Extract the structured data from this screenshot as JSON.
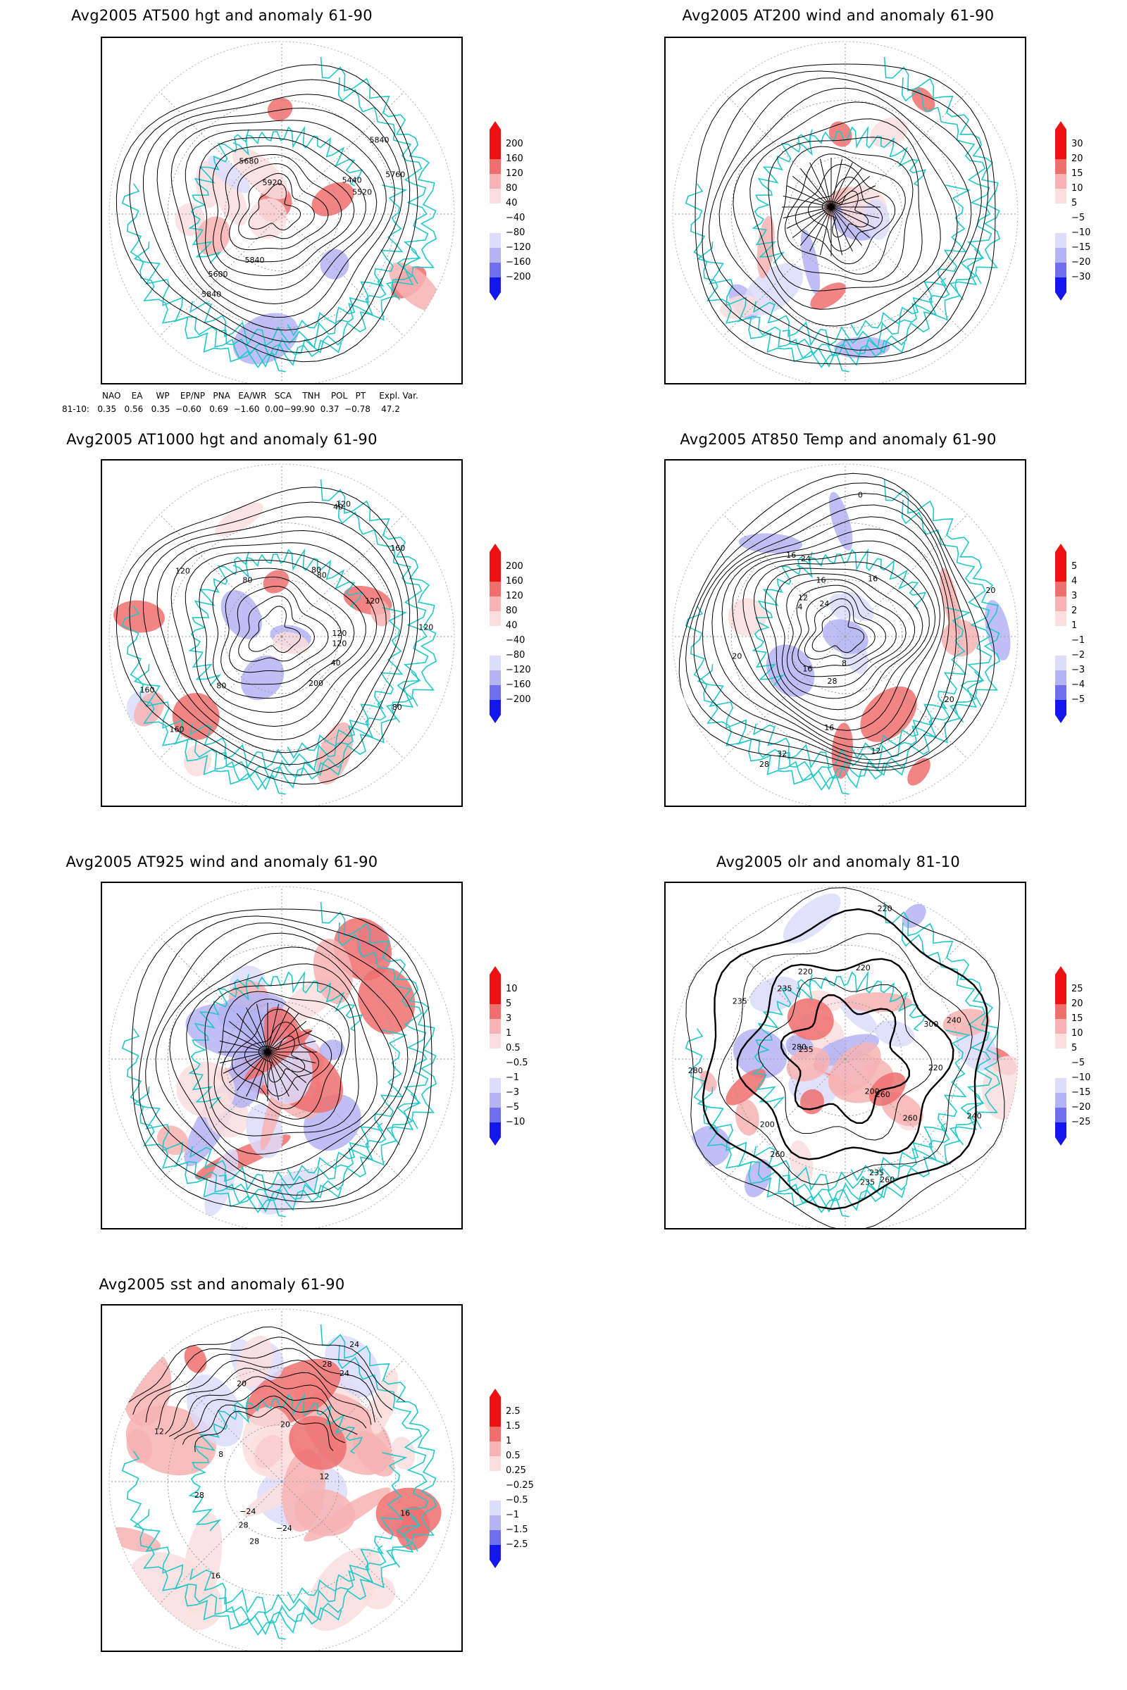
{
  "panels": [
    {
      "id": "p1",
      "title": "Avg2005 AT500 hgt and anomaly 61-90",
      "colorbar": [
        "200",
        "160",
        "120",
        "80",
        "40",
        "−40",
        "−80",
        "−120",
        "−160",
        "−200"
      ],
      "contour_labels": [
        "5840",
        "5440",
        "5680",
        "5520",
        "5600",
        "5760",
        "5840",
        "5920",
        "5840"
      ]
    },
    {
      "id": "p2",
      "title": "Avg2005 AT200 wind and anomaly 61-90",
      "colorbar": [
        "30",
        "20",
        "15",
        "10",
        "5",
        "−5",
        "−10",
        "−15",
        "−20",
        "−30"
      ],
      "contour_labels": []
    },
    {
      "id": "p3",
      "title": "Avg2005 AT1000 hgt and anomaly 61-90",
      "colorbar": [
        "200",
        "160",
        "120",
        "80",
        "40",
        "−40",
        "−80",
        "−120",
        "−160",
        "−200"
      ],
      "contour_labels": [
        "120",
        "160",
        "120",
        "80",
        "160",
        "120",
        "80",
        "40",
        "80",
        "120",
        "200",
        "160",
        "80",
        "120",
        "40",
        "80",
        "120"
      ]
    },
    {
      "id": "p4",
      "title": "Avg2005 AT850 Temp and anomaly 61-90",
      "colorbar": [
        "5",
        "4",
        "3",
        "2",
        "1",
        "−1",
        "−2",
        "−3",
        "−4",
        "−5"
      ],
      "contour_labels": [
        "16",
        "16",
        "12",
        "24",
        "20",
        "8",
        "4",
        "0",
        "28",
        "20",
        "12",
        "16",
        "20",
        "28",
        "24",
        "32",
        "16",
        "16"
      ]
    },
    {
      "id": "p5",
      "title": "Avg2005 AT925 wind and anomaly 61-90",
      "colorbar": [
        "10",
        "5",
        "3",
        "1",
        "0.5",
        "−0.5",
        "−1",
        "−3",
        "−5",
        "−10"
      ],
      "contour_labels": []
    },
    {
      "id": "p6",
      "title": "Avg2005 olr and anomaly 81-10",
      "colorbar": [
        "25",
        "20",
        "15",
        "10",
        "5",
        "−5",
        "−10",
        "−15",
        "−20",
        "−25"
      ],
      "contour_labels": [
        "280",
        "260",
        "235",
        "220",
        "235",
        "260",
        "240",
        "200",
        "235",
        "220",
        "280",
        "260",
        "240",
        "220",
        "200",
        "235",
        "300",
        "260",
        "220",
        "235"
      ]
    },
    {
      "id": "p7",
      "title": "Avg2005 sst and anomaly 61-90",
      "colorbar": [
        "2.5",
        "1.5",
        "1",
        "0.5",
        "0.25",
        "−0.25",
        "−0.5",
        "−1",
        "−1.5",
        "−2.5"
      ],
      "contour_labels": [
        "28",
        "24",
        "20",
        "16",
        "12",
        "8",
        "28",
        "24",
        "20",
        "16",
        "12",
        "28",
        "−24",
        "28",
        "−24"
      ]
    }
  ],
  "teleconnections": {
    "header": "NAO    EA     WP    EP/NP   PNA   EA/WR   SCA    TNH    POL   PT     Expl. Var.",
    "row": "81-10:   0.35   0.56   0.35  −0.60   0.69  −1.60  0.00−99.90  0.37  −0.78    47.2"
  },
  "colors": {
    "coast": "#22c8c8",
    "contour": "#000000",
    "grid": "#9a9a9a",
    "pos_strong": "#ee1111",
    "pos_mid": "#f06e6e",
    "pos_light": "#f7b3b3",
    "pos_pale": "#fbdede",
    "neg_pale": "#dcdcfb",
    "neg_light": "#b4b4f5",
    "neg_mid": "#7070ee",
    "neg_strong": "#1515ee"
  }
}
